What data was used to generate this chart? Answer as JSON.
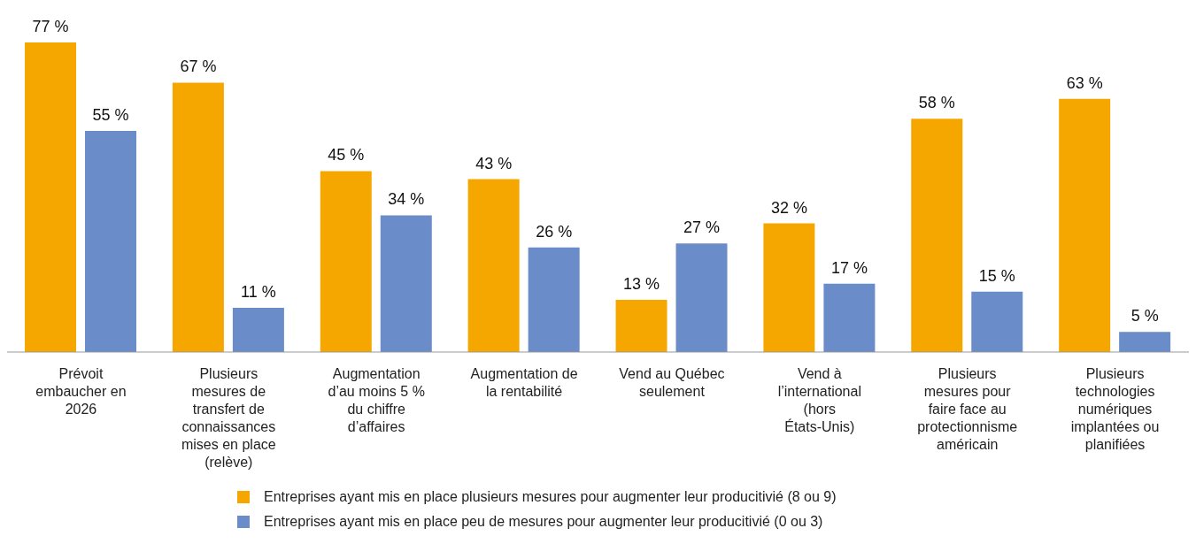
{
  "chart_data": {
    "type": "bar",
    "categories": [
      "Prévoit embaucher en 2026",
      "Plusieurs mesures de transfert de connaissances mises en place (relève)",
      "Augmentation d’au moins 5 % du chiffre d’affaires",
      "Augmentation de la rentabilité",
      "Vend au Québec seulement",
      "Vend à l’international (hors États-Unis)",
      "Plusieurs mesures pour faire face au protectionnisme américain",
      "Plusieurs technologies numériques implantées ou planifiées"
    ],
    "series": [
      {
        "name": "Entreprises ayant mis en place plusieurs mesures pour augmenter leur producitivié (8 ou 9)",
        "color": "#f5a700",
        "values": [
          77,
          67,
          45,
          43,
          13,
          32,
          58,
          63
        ],
        "value_labels": [
          "77 %",
          "67 %",
          "45 %",
          "43 %",
          "13 %",
          "32 %",
          "58 %",
          "63 %"
        ]
      },
      {
        "name": "Entreprises ayant mis en place peu de mesures pour augmenter leur producitivié (0 ou 3)",
        "color": "#6a8cc9",
        "values": [
          55,
          11,
          34,
          26,
          27,
          17,
          15,
          5
        ],
        "value_labels": [
          "55 %",
          "11 %",
          "34 %",
          "26 %",
          "27 %",
          "17 %",
          "15 %",
          "5 %"
        ]
      }
    ],
    "legend": "bottom"
  }
}
